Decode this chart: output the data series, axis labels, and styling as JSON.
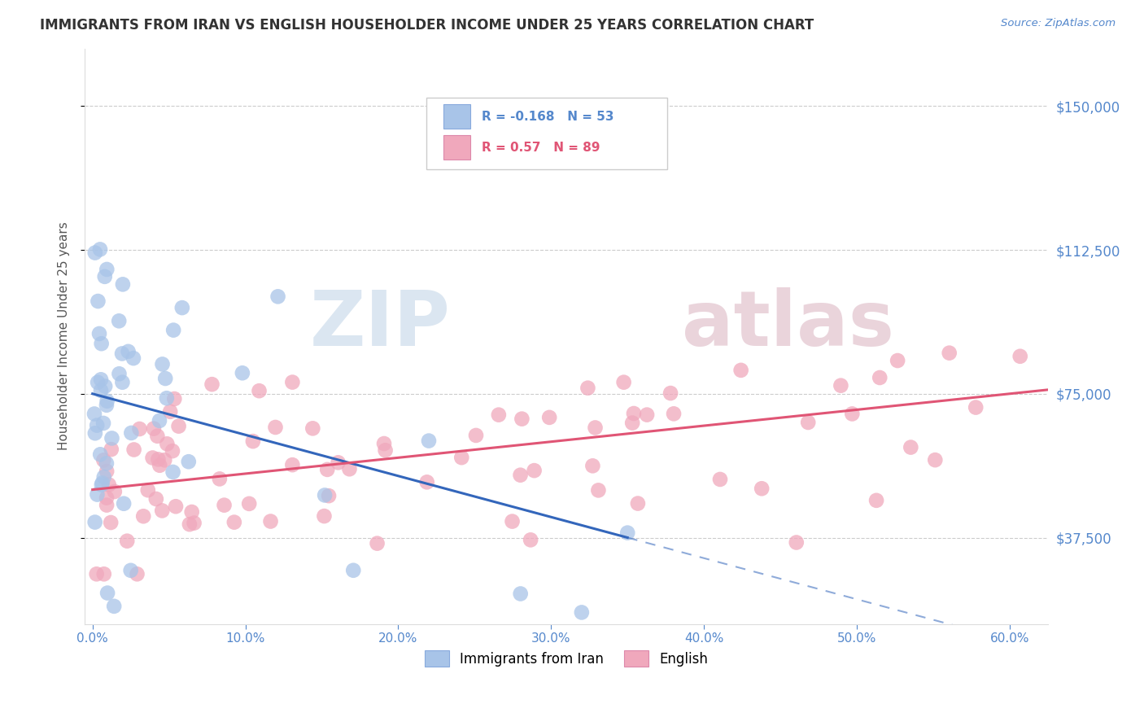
{
  "title": "IMMIGRANTS FROM IRAN VS ENGLISH HOUSEHOLDER INCOME UNDER 25 YEARS CORRELATION CHART",
  "source": "Source: ZipAtlas.com",
  "ylabel": "Householder Income Under 25 years",
  "xlabel_ticks": [
    "0.0%",
    "10.0%",
    "20.0%",
    "30.0%",
    "40.0%",
    "50.0%",
    "60.0%"
  ],
  "xlabel_vals": [
    0.0,
    0.1,
    0.2,
    0.3,
    0.4,
    0.5,
    0.6
  ],
  "ytick_labels": [
    "$37,500",
    "$75,000",
    "$112,500",
    "$150,000"
  ],
  "ytick_vals": [
    37500,
    75000,
    112500,
    150000
  ],
  "ylim": [
    15000,
    165000
  ],
  "xlim": [
    -0.005,
    0.625
  ],
  "legend_iran": "Immigrants from Iran",
  "legend_english": "English",
  "R_iran": -0.168,
  "N_iran": 53,
  "R_english": 0.57,
  "N_english": 89,
  "iran_color": "#a8c4e8",
  "iran_line_color": "#3366bb",
  "english_color": "#f0a8bc",
  "english_line_color": "#e05575",
  "watermark_zip_color": "#d8e4f0",
  "watermark_atlas_color": "#e8d0d8",
  "background_color": "#ffffff",
  "grid_color": "#cccccc",
  "title_color": "#333333",
  "source_color": "#5588cc",
  "tick_color": "#5588cc",
  "ylabel_color": "#555555"
}
